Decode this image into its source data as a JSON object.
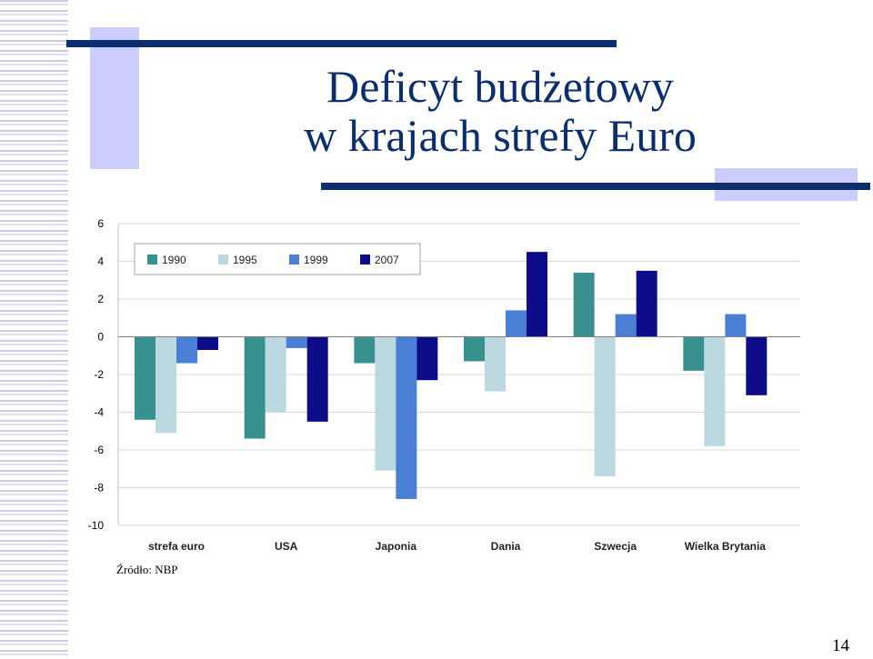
{
  "slide": {
    "title_line1": "Deficyt budżetowy",
    "title_line2": "w krajach strefy Euro",
    "source": "Źródło: NBP",
    "page_number": "14"
  },
  "colors": {
    "title": "#0b2e6f",
    "decor_bar": "#0b2e6f",
    "decor_block": "#ccccff",
    "gridline": "#d9d9d9"
  },
  "chart_data": {
    "type": "bar",
    "categories": [
      "strefa euro",
      "USA",
      "Japonia",
      "Dania",
      "Szwecja",
      "Wielka Brytania"
    ],
    "series": [
      {
        "name": "1990",
        "color": "#39918f",
        "values": [
          -4.4,
          -5.4,
          -1.4,
          -1.3,
          3.4,
          -1.8
        ]
      },
      {
        "name": "1995",
        "color": "#bcd9e1",
        "values": [
          -5.1,
          -4.0,
          -7.1,
          -2.9,
          -7.4,
          -5.8
        ]
      },
      {
        "name": "1999",
        "color": "#4a7fd6",
        "values": [
          -1.4,
          -0.6,
          -8.6,
          1.4,
          1.2,
          1.2
        ]
      },
      {
        "name": "2007",
        "color": "#0d0d8a",
        "values": [
          -0.7,
          -4.5,
          -2.3,
          4.5,
          3.5,
          -3.1
        ]
      }
    ],
    "ylim": [
      -10,
      6
    ],
    "yticks": [
      "6",
      "4",
      "2",
      "0",
      "-2",
      "-4",
      "-6",
      "-8",
      "-10"
    ],
    "grid": true,
    "legend_position": "top-left"
  }
}
